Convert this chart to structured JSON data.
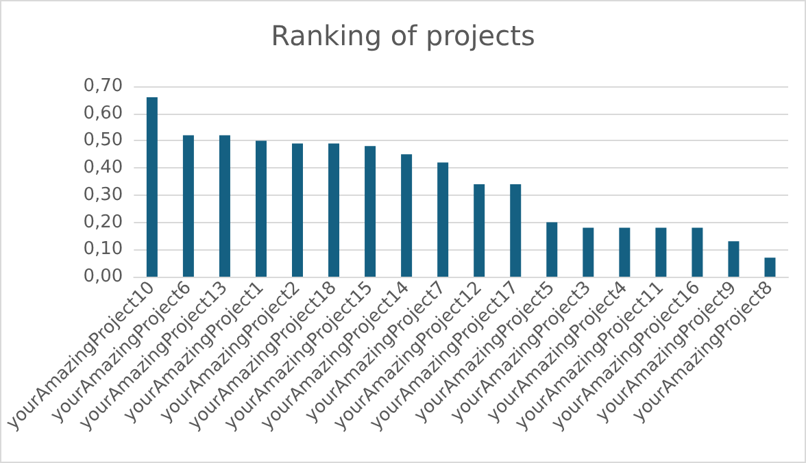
{
  "chart_data": {
    "type": "bar",
    "title": "Ranking of projects",
    "categories": [
      "yourAmazingProject10",
      "yourAmazingProject6",
      "yourAmazingProject13",
      "yourAmazingProject1",
      "yourAmazingProject2",
      "yourAmazingProject18",
      "yourAmazingProject15",
      "yourAmazingProject14",
      "yourAmazingProject7",
      "yourAmazingProject12",
      "yourAmazingProject17",
      "yourAmazingProject5",
      "yourAmazingProject3",
      "yourAmazingProject4",
      "yourAmazingProject11",
      "yourAmazingProject16",
      "yourAmazingProject9",
      "yourAmazingProject8"
    ],
    "values": [
      0.66,
      0.52,
      0.52,
      0.5,
      0.49,
      0.49,
      0.48,
      0.45,
      0.42,
      0.34,
      0.34,
      0.2,
      0.18,
      0.18,
      0.18,
      0.18,
      0.13,
      0.07
    ],
    "color": "#156082",
    "ylim": [
      0,
      0.7
    ],
    "yticks": [
      {
        "value": 0,
        "label": "0,00"
      },
      {
        "value": 0.1,
        "label": "0,10"
      },
      {
        "value": 0.2,
        "label": "0,20"
      },
      {
        "value": 0.3,
        "label": "0,30"
      },
      {
        "value": 0.4,
        "label": "0,40"
      },
      {
        "value": 0.5,
        "label": "0,50"
      },
      {
        "value": 0.6,
        "label": "0,60"
      },
      {
        "value": 0.7,
        "label": "0,70"
      }
    ],
    "grid": "y"
  }
}
